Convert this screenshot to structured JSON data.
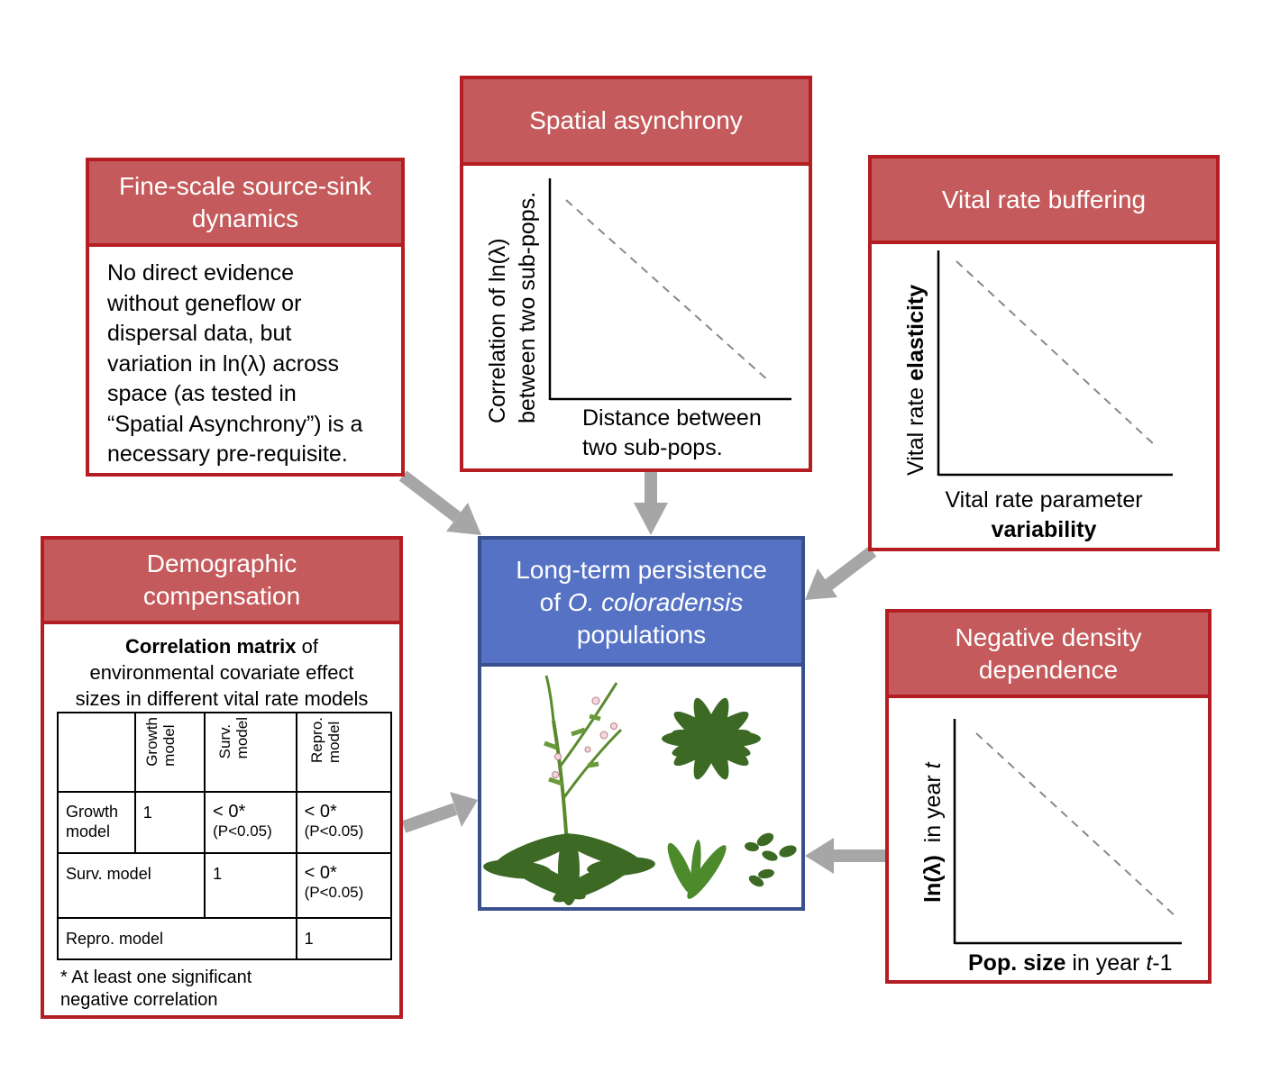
{
  "source_sink": {
    "title_line1": "Fine-scale source-sink",
    "title_line2": "dynamics",
    "body": [
      "No direct evidence",
      "without geneflow or",
      "dispersal data, but",
      "variation in ln(λ) across",
      "space (as tested in",
      "“Spatial Asynchrony”) is a",
      "necessary pre-requisite."
    ]
  },
  "spatial": {
    "title": "Spatial asynchrony",
    "ylabel_line1": "Correlation of ln(λ)",
    "ylabel_line2": "between two sub-pops.",
    "xlabel_line1": "Distance between",
    "xlabel_line2": "two sub-pops."
  },
  "buffering": {
    "title": "Vital rate buffering",
    "ylabel_normal": "Vital rate ",
    "ylabel_bold": "elasticity",
    "xlabel_normal": "Vital rate parameter",
    "xlabel_bold": "variability"
  },
  "compensation": {
    "title_line1": "Demographic",
    "title_line2": "compensation",
    "desc_bold": "Correlation matrix",
    "desc_rest1": " of",
    "desc_line2": "environmental covariate effect",
    "desc_line3": "sizes in different vital rate models",
    "col_heads": [
      [
        "Growth",
        "model"
      ],
      [
        "Surv.",
        "model"
      ],
      [
        "Repro.",
        "model"
      ]
    ],
    "row1": {
      "label": [
        "Growth",
        "model"
      ],
      "c1": "1",
      "c2_main": "< 0*",
      "c2_sub": "(P<0.05)",
      "c3_main": "< 0*",
      "c3_sub": "(P<0.05)"
    },
    "row2": {
      "label": "Surv. model",
      "c2": "1",
      "c3_main": "< 0*",
      "c3_sub": "(P<0.05)"
    },
    "row3": {
      "label": "Repro. model",
      "c3": "1"
    },
    "footnote_line1": "* At least one significant",
    "footnote_line2": "negative correlation"
  },
  "center": {
    "line1": "Long-term persistence",
    "line2_pre": "of ",
    "line2_italic": "O. coloradensis",
    "line3": "populations"
  },
  "density": {
    "title_line1": "Negative density",
    "title_line2": "dependence",
    "ylabel_bold": "ln(λ)",
    "ylabel_normal": "  in year ",
    "ylabel_italic": "t",
    "xlabel_bold": "Pop. size",
    "xlabel_normal": " in year ",
    "xlabel_italic": "t",
    "xlabel_suffix": "-1"
  },
  "colors": {
    "red_border": "#b41e23",
    "red_header": "#c45a5b",
    "blue_border": "#3a4f8e",
    "blue_header": "#5672c4",
    "arrow": "#a6a6a6"
  }
}
